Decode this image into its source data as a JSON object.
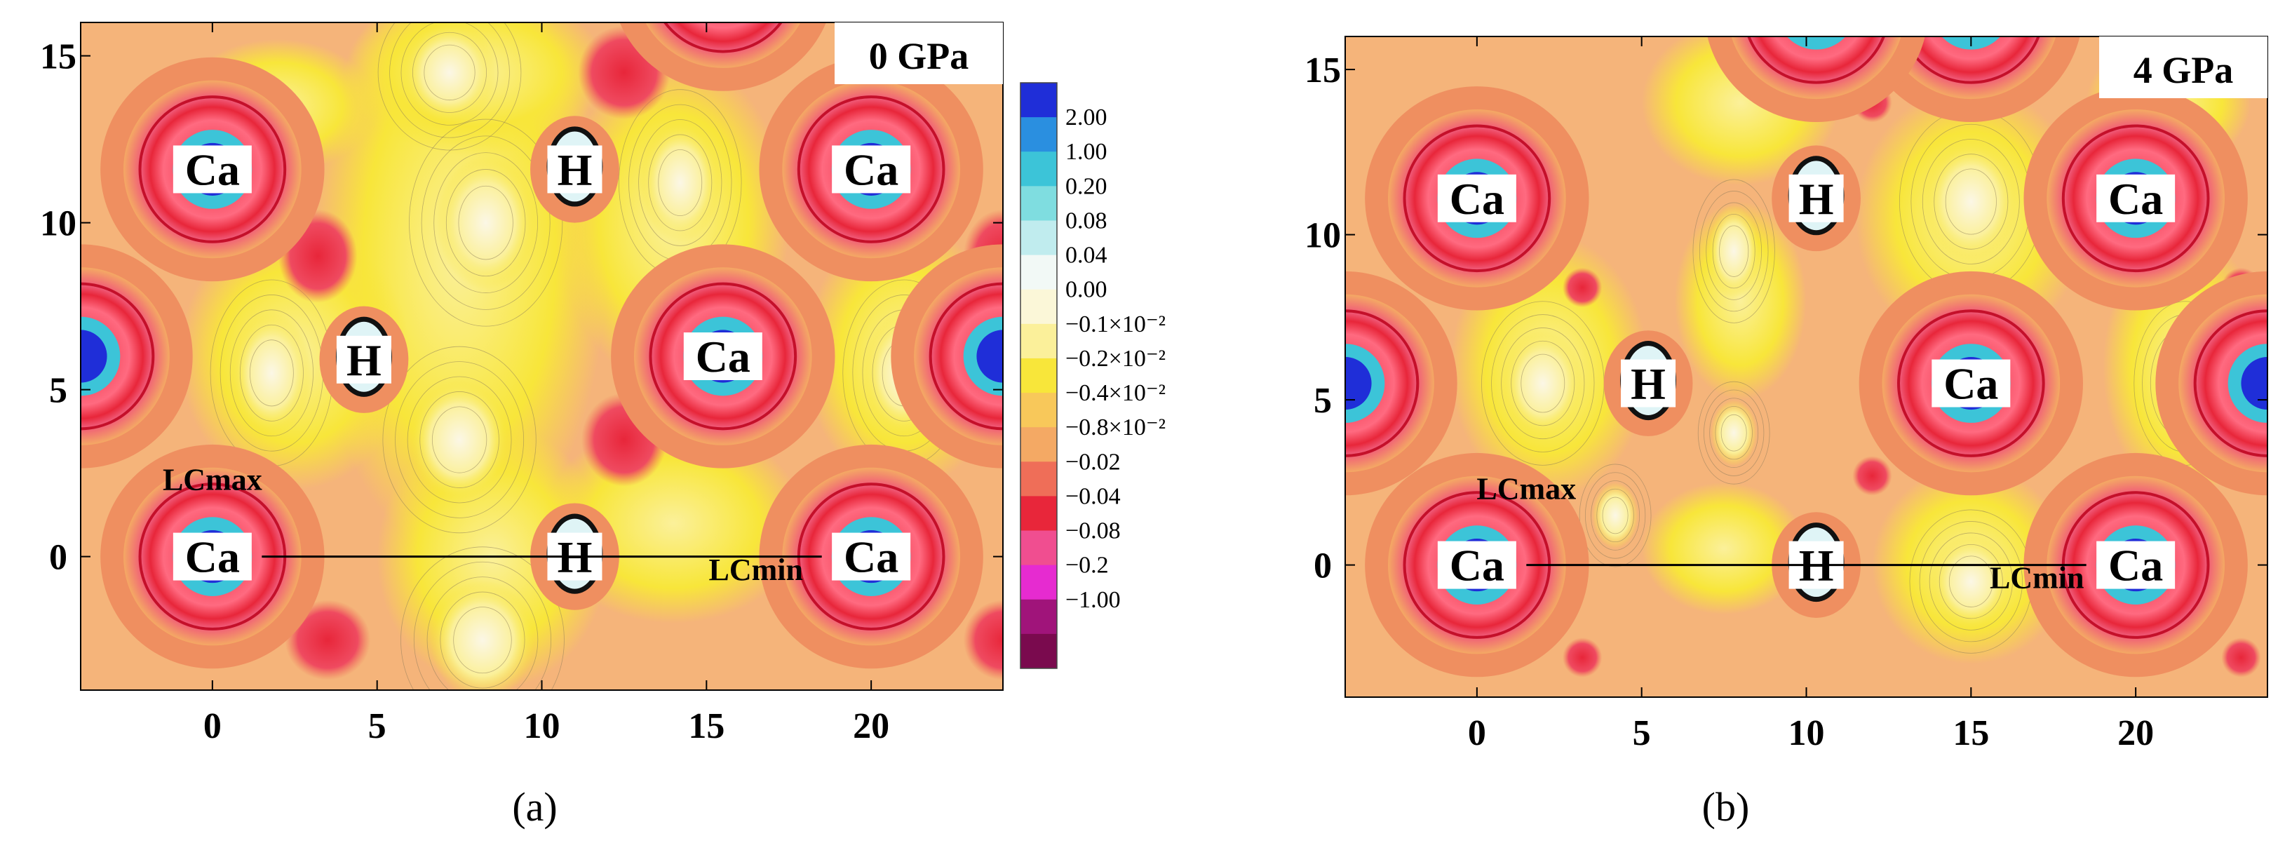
{
  "figure_type": "Charge density difference contour maps",
  "chart_data": [
    {
      "type": "contour",
      "panel_label": "(a)",
      "pressure_label": "0 GPa",
      "xlim": [
        -4,
        24
      ],
      "ylim": [
        -4,
        16
      ],
      "x_ticks": [
        0,
        5,
        10,
        15,
        20
      ],
      "y_ticks": [
        0,
        5,
        10,
        15
      ],
      "x_tick_labels": [
        "0",
        "5",
        "10",
        "15",
        "20"
      ],
      "y_tick_labels": [
        "0",
        "5",
        "10",
        "15"
      ],
      "atoms": [
        {
          "label": "Ca",
          "x": 0,
          "y": 11.6
        },
        {
          "label": "Ca",
          "x": 20,
          "y": 11.6
        },
        {
          "label": "Ca",
          "x": 15.5,
          "y": 6.0
        },
        {
          "label": "Ca",
          "x": 0,
          "y": 0
        },
        {
          "label": "Ca",
          "x": 20,
          "y": 0
        },
        {
          "label": "H",
          "x": 11,
          "y": 11.6
        },
        {
          "label": "H",
          "x": 4.6,
          "y": 5.9
        },
        {
          "label": "H",
          "x": 11,
          "y": 0
        }
      ],
      "annotations": [
        {
          "text": "LCmax",
          "x": 0,
          "y": 2.0
        },
        {
          "text": "LCmin",
          "x": 16.5,
          "y": -0.7
        }
      ],
      "line_segment": {
        "x": [
          1.5,
          18.5
        ],
        "y": [
          0,
          0
        ]
      }
    },
    {
      "type": "contour",
      "panel_label": "(b)",
      "pressure_label": "4 GPa",
      "xlim": [
        -4,
        24
      ],
      "ylim": [
        -4,
        16
      ],
      "x_ticks": [
        0,
        5,
        10,
        15,
        20
      ],
      "y_ticks": [
        0,
        5,
        10,
        15
      ],
      "x_tick_labels": [
        "0",
        "5",
        "10",
        "15",
        "20"
      ],
      "y_tick_labels": [
        "0",
        "5",
        "10",
        "15"
      ],
      "atoms": [
        {
          "label": "Ca",
          "x": 0,
          "y": 11.1
        },
        {
          "label": "Ca",
          "x": 20,
          "y": 11.1
        },
        {
          "label": "Ca",
          "x": 15,
          "y": 5.5
        },
        {
          "label": "Ca",
          "x": 0,
          "y": 0
        },
        {
          "label": "Ca",
          "x": 20,
          "y": 0
        },
        {
          "label": "H",
          "x": 10.3,
          "y": 11.1
        },
        {
          "label": "H",
          "x": 5.2,
          "y": 5.5
        },
        {
          "label": "H",
          "x": 10.3,
          "y": 0
        }
      ],
      "annotations": [
        {
          "text": "LCmax",
          "x": 1.5,
          "y": 2.0
        },
        {
          "text": "LCmin",
          "x": 17,
          "y": -0.7
        }
      ],
      "line_segment": {
        "x": [
          1.5,
          18.5
        ],
        "y": [
          0,
          0
        ]
      }
    }
  ],
  "colorbar": {
    "levels": [
      {
        "label": "2.00",
        "color": "#1f2ed8"
      },
      {
        "label": "1.00",
        "color": "#2a8fe0"
      },
      {
        "label": "0.20",
        "color": "#3cc4d8"
      },
      {
        "label": "0.08",
        "color": "#7fdde0"
      },
      {
        "label": "0.04",
        "color": "#c0ecee"
      },
      {
        "label": "0.00",
        "color": "#f2f9f6"
      },
      {
        "label": "−0.1×10⁻²",
        "color": "#fbf7d8"
      },
      {
        "label": "−0.2×10⁻²",
        "color": "#fbf09a"
      },
      {
        "label": "−0.4×10⁻²",
        "color": "#f8e63a"
      },
      {
        "label": "−0.8×10⁻²",
        "color": "#f8c85a"
      },
      {
        "label": "−0.02",
        "color": "#f4a964"
      },
      {
        "label": "−0.04",
        "color": "#ef6e58"
      },
      {
        "label": "−0.08",
        "color": "#e8263a"
      },
      {
        "label": "−0.2",
        "color": "#f04e90"
      },
      {
        "label": "−1.00",
        "color": "#e62bd0"
      },
      {
        "label": "",
        "color": "#a0147a"
      },
      {
        "label": "",
        "color": "#7a0a4e"
      }
    ]
  },
  "colors": {
    "background": "#f5b47a",
    "yellow": "#f8e63a",
    "light_yellow": "#fbf09a",
    "white": "#fbf7e6",
    "orange": "#ef8f60",
    "red_ring": "#e8263a",
    "pink_ring": "#f05a78",
    "atom_blue": "#3cc4d8",
    "dark_blue": "#1f2ed8"
  }
}
